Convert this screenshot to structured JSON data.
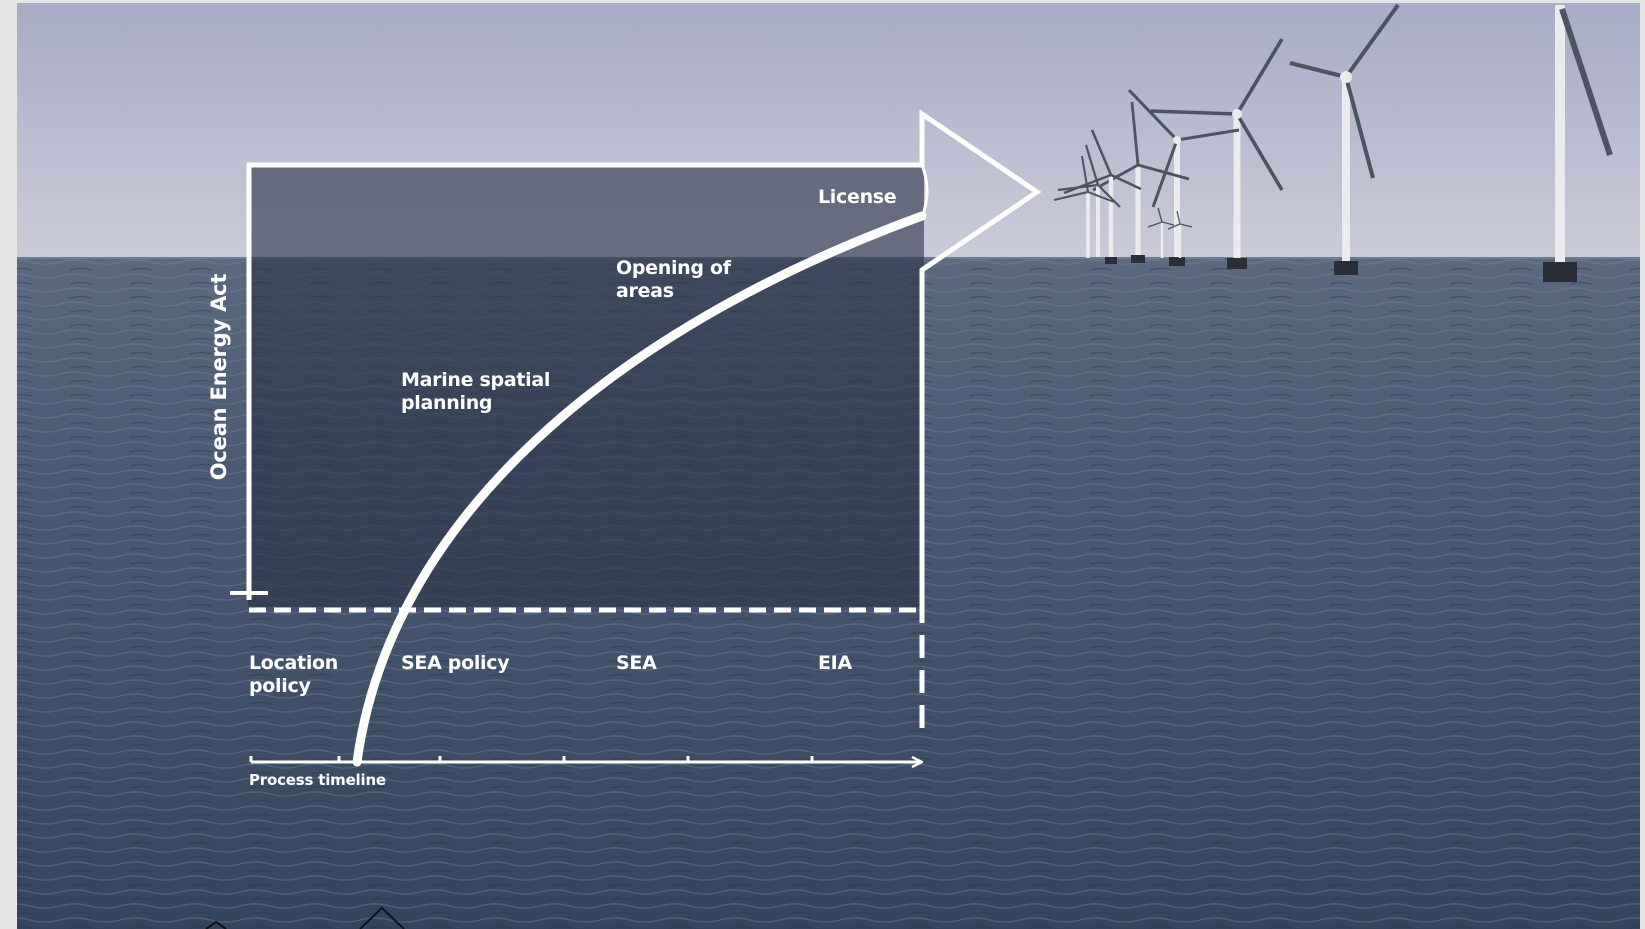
{
  "diagram": {
    "y_axis_label": "Ocean Energy Act",
    "x_axis_label": "Process timeline",
    "stage_labels": {
      "license": "License",
      "opening_of_areas": "Opening of\nareas",
      "marine_spatial_planning": "Marine spatial\nplanning"
    },
    "timeline_phases": {
      "location_policy": "Location\npolicy",
      "sea_policy": "SEA policy",
      "sea": "SEA",
      "eia": "EIA"
    }
  },
  "colors": {
    "sky_top": "#a9acc7",
    "sky_horizon": "#c7c9d8",
    "sea_far": "#56657c",
    "sea_near": "#33475f",
    "overlay": "#2b3448",
    "lines": "#ffffff",
    "border_strip": "#e4e5e4"
  }
}
